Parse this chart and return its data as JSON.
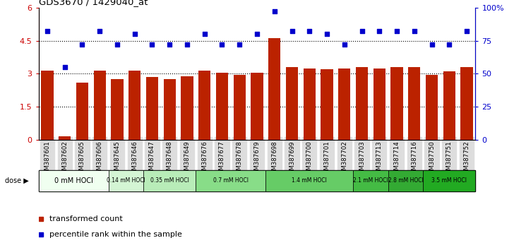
{
  "title": "GDS3670 / 1429040_at",
  "samples": [
    "GSM387601",
    "GSM387602",
    "GSM387605",
    "GSM387606",
    "GSM387645",
    "GSM387646",
    "GSM387647",
    "GSM387648",
    "GSM387649",
    "GSM387676",
    "GSM387677",
    "GSM387678",
    "GSM387679",
    "GSM387698",
    "GSM387699",
    "GSM387700",
    "GSM387701",
    "GSM387702",
    "GSM387703",
    "GSM387713",
    "GSM387714",
    "GSM387716",
    "GSM387750",
    "GSM387751",
    "GSM387752"
  ],
  "bar_values": [
    3.15,
    0.17,
    2.6,
    3.15,
    2.75,
    3.15,
    2.85,
    2.75,
    2.9,
    3.15,
    3.05,
    2.95,
    3.05,
    4.6,
    3.3,
    3.25,
    3.2,
    3.25,
    3.3,
    3.25,
    3.3,
    3.3,
    2.95,
    3.1,
    3.3
  ],
  "percentile_values": [
    82,
    55,
    72,
    82,
    72,
    80,
    72,
    72,
    72,
    80,
    72,
    72,
    80,
    97,
    82,
    82,
    80,
    72,
    82,
    82,
    82,
    82,
    72,
    72,
    82
  ],
  "dose_groups": [
    {
      "label": "0 mM HOCl",
      "start": 0,
      "end": 4,
      "color": "#f0fff0"
    },
    {
      "label": "0.14 mM HOCl",
      "start": 4,
      "end": 6,
      "color": "#d4f5d4"
    },
    {
      "label": "0.35 mM HOCl",
      "start": 6,
      "end": 9,
      "color": "#b8ecb8"
    },
    {
      "label": "0.7 mM HOCl",
      "start": 9,
      "end": 13,
      "color": "#88dd88"
    },
    {
      "label": "1.4 mM HOCl",
      "start": 13,
      "end": 18,
      "color": "#66cc66"
    },
    {
      "label": "2.1 mM HOCl",
      "start": 18,
      "end": 20,
      "color": "#44bb44"
    },
    {
      "label": "2.8 mM HOCl",
      "start": 20,
      "end": 22,
      "color": "#33aa33"
    },
    {
      "label": "3.5 mM HOCl",
      "start": 22,
      "end": 25,
      "color": "#22aa22"
    }
  ],
  "ylim_left": [
    0,
    6
  ],
  "ylim_right": [
    0,
    100
  ],
  "yticks_left": [
    0,
    1.5,
    3.0,
    4.5,
    6.0
  ],
  "ytick_labels_left": [
    "0",
    "1.5",
    "3",
    "4.5",
    "6"
  ],
  "yticks_right": [
    0,
    25,
    50,
    75,
    100
  ],
  "ytick_labels_right": [
    "0",
    "25",
    "50",
    "75",
    "100%"
  ],
  "bar_color": "#bb2200",
  "dot_color": "#0000cc",
  "bg_color": "#ffffff",
  "title_color": "#000000",
  "left_axis_color": "#cc0000",
  "right_axis_color": "#0000cc",
  "grid_color": "#000000",
  "tick_label_bg": "#dddddd"
}
